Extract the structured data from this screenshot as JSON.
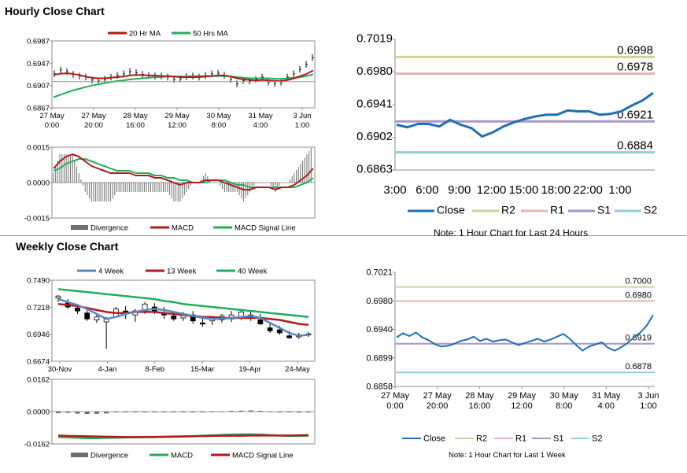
{
  "sections": {
    "hourly_title": "Hourly Close Chart",
    "weekly_title": "Weekly Close Chart"
  },
  "colors": {
    "close": "#1f6fb4",
    "r2": "#c5d89a",
    "r1": "#e8b3b3",
    "s1": "#a996c8",
    "s2": "#8fd0dc",
    "ma_red": "#b11a1a",
    "ma_green": "#1faf58",
    "ma_blue": "#5b86c5",
    "divergence": "#6e6e6e"
  },
  "chart_data": [
    {
      "id": "hourly_ma",
      "type": "line",
      "legend": [
        "20 Hr MA",
        "50 Hrs MA"
      ],
      "ylim": [
        0.6867,
        0.6987
      ],
      "yticks": [
        "0.6987",
        "0.6947",
        "0.6907",
        "0.6867"
      ],
      "xticks": [
        [
          "27 May",
          "0:00"
        ],
        [
          "27 May",
          "20:00"
        ],
        [
          "28 May",
          "16:00"
        ],
        [
          "29 May",
          "12:00"
        ],
        [
          "30 May",
          "8:00"
        ],
        [
          "31 May",
          "4:00"
        ],
        [
          "3 Jun",
          "1:00"
        ]
      ],
      "price": [
        0.6928,
        0.6935,
        0.6932,
        0.6927,
        0.6924,
        0.6922,
        0.6917,
        0.6915,
        0.6918,
        0.6922,
        0.6925,
        0.6928,
        0.6932,
        0.693,
        0.6927,
        0.6925,
        0.6924,
        0.6924,
        0.6922,
        0.6918,
        0.6919,
        0.6923,
        0.6924,
        0.6922,
        0.6925,
        0.6928,
        0.6929,
        0.6925,
        0.6918,
        0.691,
        0.6916,
        0.6915,
        0.6918,
        0.6922,
        0.6913,
        0.6911,
        0.6913,
        0.6922,
        0.6928,
        0.6936,
        0.6945,
        0.6957
      ],
      "series": [
        {
          "name": "20 Hr MA",
          "values": [
            0.6926,
            0.6928,
            0.6929,
            0.6928,
            0.6926,
            0.6923,
            0.6921,
            0.692,
            0.692,
            0.6921,
            0.6922,
            0.6923,
            0.6925,
            0.6926,
            0.6926,
            0.6925,
            0.6925,
            0.6924,
            0.6924,
            0.6923,
            0.6922,
            0.6922,
            0.6922,
            0.6922,
            0.6923,
            0.6924,
            0.6925,
            0.6925,
            0.6923,
            0.692,
            0.6918,
            0.6917,
            0.6916,
            0.6917,
            0.6916,
            0.6915,
            0.6915,
            0.6917,
            0.692,
            0.6924,
            0.6928,
            0.6934
          ]
        },
        {
          "name": "50 Hrs MA",
          "values": [
            0.6886,
            0.689,
            0.6894,
            0.6898,
            0.6901,
            0.6904,
            0.6907,
            0.6909,
            0.6911,
            0.6913,
            0.6915,
            0.6916,
            0.6918,
            0.6919,
            0.692,
            0.6921,
            0.6922,
            0.6922,
            0.6923,
            0.6923,
            0.6923,
            0.6923,
            0.6924,
            0.6924,
            0.6924,
            0.6924,
            0.6924,
            0.6924,
            0.6923,
            0.6922,
            0.6921,
            0.692,
            0.692,
            0.692,
            0.692,
            0.6919,
            0.6919,
            0.692,
            0.6921,
            0.6922,
            0.6924,
            0.6927
          ]
        }
      ]
    },
    {
      "id": "hourly_macd",
      "type": "line",
      "legend": [
        "Divergence",
        "MACD",
        "MACD Signal Line"
      ],
      "ylim": [
        -0.0015,
        0.0015
      ],
      "yticks": [
        "0.0015",
        "0.0000",
        "-0.0015"
      ],
      "series": [
        {
          "name": "MACD",
          "values": [
            0.0006,
            0.0009,
            0.0011,
            0.0012,
            0.0011,
            0.0009,
            0.0007,
            0.0006,
            0.0005,
            0.0004,
            0.0004,
            0.0004,
            0.0004,
            0.0003,
            0.0003,
            0.0003,
            0.0002,
            0.0002,
            0.0001,
            0.0,
            -0.0001,
            0.0,
            0.0,
            0.0,
            0.0001,
            0.0001,
            0.0001,
            0.0,
            -0.0001,
            -0.0002,
            -0.0003,
            -0.0003,
            -0.0002,
            -0.0002,
            -0.0002,
            -0.0003,
            -0.0002,
            -0.0002,
            -0.0001,
            0.0001,
            0.0003,
            0.0006
          ]
        },
        {
          "name": "MACD Signal Line",
          "values": [
            0.0005,
            0.0006,
            0.0008,
            0.0009,
            0.001,
            0.001,
            0.0009,
            0.0008,
            0.0007,
            0.0006,
            0.0005,
            0.0005,
            0.0005,
            0.0004,
            0.0004,
            0.0004,
            0.0003,
            0.0003,
            0.0002,
            0.0002,
            0.0001,
            0.0001,
            0.0,
            0.0,
            0.0,
            0.0001,
            0.0001,
            0.0001,
            0.0,
            -0.0001,
            -0.0001,
            -0.0002,
            -0.0002,
            -0.0002,
            -0.0002,
            -0.0002,
            -0.0002,
            -0.0002,
            -0.0002,
            -0.0001,
            0.0,
            0.0002
          ]
        }
      ]
    },
    {
      "id": "hourly_24h",
      "type": "line",
      "ylim": [
        0.6863,
        0.7019
      ],
      "yticks": [
        "0.7019",
        "0.6980",
        "0.6941",
        "0.6902",
        "0.6863"
      ],
      "xticks": [
        "3:00",
        "6:00",
        "9:00",
        "12:00",
        "15:00",
        "18:00",
        "22:00",
        "1:00"
      ],
      "legend": [
        "Close",
        "R2",
        "R1",
        "S1",
        "S2"
      ],
      "levels": {
        "R2": 0.6998,
        "R1": 0.6978,
        "S1": 0.6921,
        "S2": 0.6884
      },
      "level_labels": {
        "R2": "0.6998",
        "R1": "0.6978",
        "S1": "0.6921",
        "S2": "0.6884"
      },
      "close": [
        0.6917,
        0.6914,
        0.6918,
        0.6918,
        0.6915,
        0.6923,
        0.6917,
        0.6913,
        0.6903,
        0.6908,
        0.6915,
        0.692,
        0.6924,
        0.6927,
        0.6929,
        0.6929,
        0.6934,
        0.6933,
        0.6933,
        0.6929,
        0.693,
        0.6933,
        0.694,
        0.6946,
        0.6955
      ],
      "note": "Note: 1 Hour Chart for Last 24 Hours"
    },
    {
      "id": "weekly_ma",
      "type": "line",
      "legend": [
        "4 Week",
        "13 Week",
        "40 Week"
      ],
      "ylim": [
        0.6674,
        0.749
      ],
      "yticks": [
        "0.7490",
        "0.7218",
        "0.6946",
        "0.6674"
      ],
      "xticks": [
        "30-Nov",
        "4-Jan",
        "8-Feb",
        "15-Mar",
        "19-Apr",
        "24-May"
      ],
      "candles": [
        [
          0.731,
          0.734,
          0.727,
          0.733
        ],
        [
          0.726,
          0.73,
          0.72,
          0.722
        ],
        [
          0.721,
          0.725,
          0.715,
          0.718
        ],
        [
          0.716,
          0.72,
          0.708,
          0.71
        ],
        [
          0.709,
          0.714,
          0.706,
          0.712
        ],
        [
          0.707,
          0.712,
          0.68,
          0.71
        ],
        [
          0.712,
          0.722,
          0.711,
          0.72
        ],
        [
          0.718,
          0.723,
          0.71,
          0.715
        ],
        [
          0.714,
          0.72,
          0.707,
          0.718
        ],
        [
          0.718,
          0.727,
          0.715,
          0.725
        ],
        [
          0.722,
          0.726,
          0.715,
          0.718
        ],
        [
          0.716,
          0.722,
          0.71,
          0.714
        ],
        [
          0.713,
          0.718,
          0.708,
          0.71
        ],
        [
          0.711,
          0.717,
          0.708,
          0.715
        ],
        [
          0.714,
          0.718,
          0.705,
          0.708
        ],
        [
          0.706,
          0.711,
          0.702,
          0.705
        ],
        [
          0.708,
          0.713,
          0.704,
          0.711
        ],
        [
          0.709,
          0.715,
          0.706,
          0.713
        ],
        [
          0.71,
          0.718,
          0.707,
          0.714
        ],
        [
          0.712,
          0.72,
          0.709,
          0.717
        ],
        [
          0.714,
          0.719,
          0.708,
          0.711
        ],
        [
          0.709,
          0.715,
          0.704,
          0.705
        ],
        [
          0.701,
          0.706,
          0.696,
          0.698
        ],
        [
          0.699,
          0.703,
          0.694,
          0.696
        ],
        [
          0.693,
          0.698,
          0.69,
          0.691
        ],
        [
          0.692,
          0.696,
          0.69,
          0.694
        ],
        [
          0.694,
          0.697,
          0.692,
          0.695
        ]
      ],
      "series": [
        {
          "name": "4 Week",
          "values": [
            0.73,
            0.727,
            0.724,
            0.72,
            0.715,
            0.71,
            0.712,
            0.715,
            0.717,
            0.719,
            0.72,
            0.719,
            0.717,
            0.715,
            0.713,
            0.711,
            0.71,
            0.71,
            0.711,
            0.712,
            0.713,
            0.711,
            0.706,
            0.701,
            0.696,
            0.693,
            0.694
          ]
        },
        {
          "name": "13 Week",
          "values": [
            0.725,
            0.724,
            0.723,
            0.721,
            0.719,
            0.717,
            0.716,
            0.716,
            0.717,
            0.717,
            0.717,
            0.716,
            0.715,
            0.714,
            0.713,
            0.712,
            0.712,
            0.711,
            0.711,
            0.711,
            0.711,
            0.711,
            0.71,
            0.709,
            0.707,
            0.705,
            0.704
          ]
        },
        {
          "name": "40 Week",
          "values": [
            0.74,
            0.739,
            0.738,
            0.737,
            0.736,
            0.735,
            0.734,
            0.733,
            0.732,
            0.731,
            0.73,
            0.728,
            0.727,
            0.725,
            0.724,
            0.723,
            0.722,
            0.721,
            0.72,
            0.719,
            0.718,
            0.717,
            0.716,
            0.715,
            0.714,
            0.713,
            0.712
          ]
        }
      ]
    },
    {
      "id": "weekly_macd",
      "type": "line",
      "legend": [
        "Divergence",
        "MACD",
        "MACD Signal Line"
      ],
      "ylim": [
        -0.0162,
        0.0162
      ],
      "yticks": [
        "0.0162",
        "0.0000",
        "-0.0162"
      ],
      "divergence": [
        -0.0008,
        -0.0006,
        -0.001,
        -0.0012,
        -0.0011,
        -0.0009,
        -0.0004,
        -0.0002,
        -0.0002,
        -0.0001,
        0.0,
        0.0,
        -0.0001,
        -0.0002,
        -0.0001,
        0.0,
        0.0001,
        0.0002,
        0.0004,
        0.0005,
        0.0006,
        0.0004,
        0.0002,
        -0.0002,
        -0.0004,
        -0.0005,
        -0.0004
      ],
      "series": [
        {
          "name": "MACD",
          "values": [
            -0.0128,
            -0.0129,
            -0.0131,
            -0.0133,
            -0.0133,
            -0.0132,
            -0.0131,
            -0.013,
            -0.0129,
            -0.0128,
            -0.0127,
            -0.0126,
            -0.0125,
            -0.0124,
            -0.0123,
            -0.0121,
            -0.0119,
            -0.0117,
            -0.0115,
            -0.0114,
            -0.0114,
            -0.0115,
            -0.0118,
            -0.012,
            -0.0122,
            -0.0122,
            -0.0121
          ]
        },
        {
          "name": "MACD Signal Line",
          "values": [
            -0.012,
            -0.0122,
            -0.0123,
            -0.0124,
            -0.0125,
            -0.0126,
            -0.0127,
            -0.0128,
            -0.0128,
            -0.0128,
            -0.0128,
            -0.0127,
            -0.0126,
            -0.0125,
            -0.0124,
            -0.0123,
            -0.0122,
            -0.0121,
            -0.0121,
            -0.0121,
            -0.012,
            -0.012,
            -0.012,
            -0.012,
            -0.012,
            -0.0119,
            -0.0118
          ]
        }
      ]
    },
    {
      "id": "weekly_levels",
      "type": "line",
      "ylim": [
        0.6858,
        0.7021
      ],
      "yticks": [
        "0.7021",
        "0.6980",
        "0.6940",
        "0.6899",
        "0.6858"
      ],
      "xticks": [
        [
          "27 May",
          "0:00"
        ],
        [
          "27 May",
          "20:00"
        ],
        [
          "28 May",
          "16:00"
        ],
        [
          "29 May",
          "12:00"
        ],
        [
          "30 May",
          "8:00"
        ],
        [
          "31 May",
          "4:00"
        ],
        [
          "3 Jun",
          "1:00"
        ]
      ],
      "legend": [
        "Close",
        "R2",
        "R1",
        "S1",
        "S2"
      ],
      "levels": {
        "R2": 0.7,
        "R1": 0.698,
        "S1": 0.6919,
        "S2": 0.6878
      },
      "level_labels": {
        "R2": "0.7000",
        "R1": "0.6980",
        "S1": "0.6919",
        "S2": "0.6878"
      },
      "close": [
        0.6928,
        0.6934,
        0.693,
        0.6935,
        0.6928,
        0.6924,
        0.6918,
        0.6915,
        0.6916,
        0.6919,
        0.6923,
        0.6925,
        0.6929,
        0.6923,
        0.6926,
        0.6922,
        0.6924,
        0.6925,
        0.6921,
        0.6917,
        0.692,
        0.6923,
        0.6926,
        0.6922,
        0.6925,
        0.6929,
        0.6933,
        0.6926,
        0.6917,
        0.6909,
        0.6915,
        0.6918,
        0.6921,
        0.6913,
        0.6909,
        0.6914,
        0.692,
        0.6928,
        0.6935,
        0.6945,
        0.696
      ],
      "note": "Note: 1 Hour Chart for Last 1 Week"
    }
  ]
}
